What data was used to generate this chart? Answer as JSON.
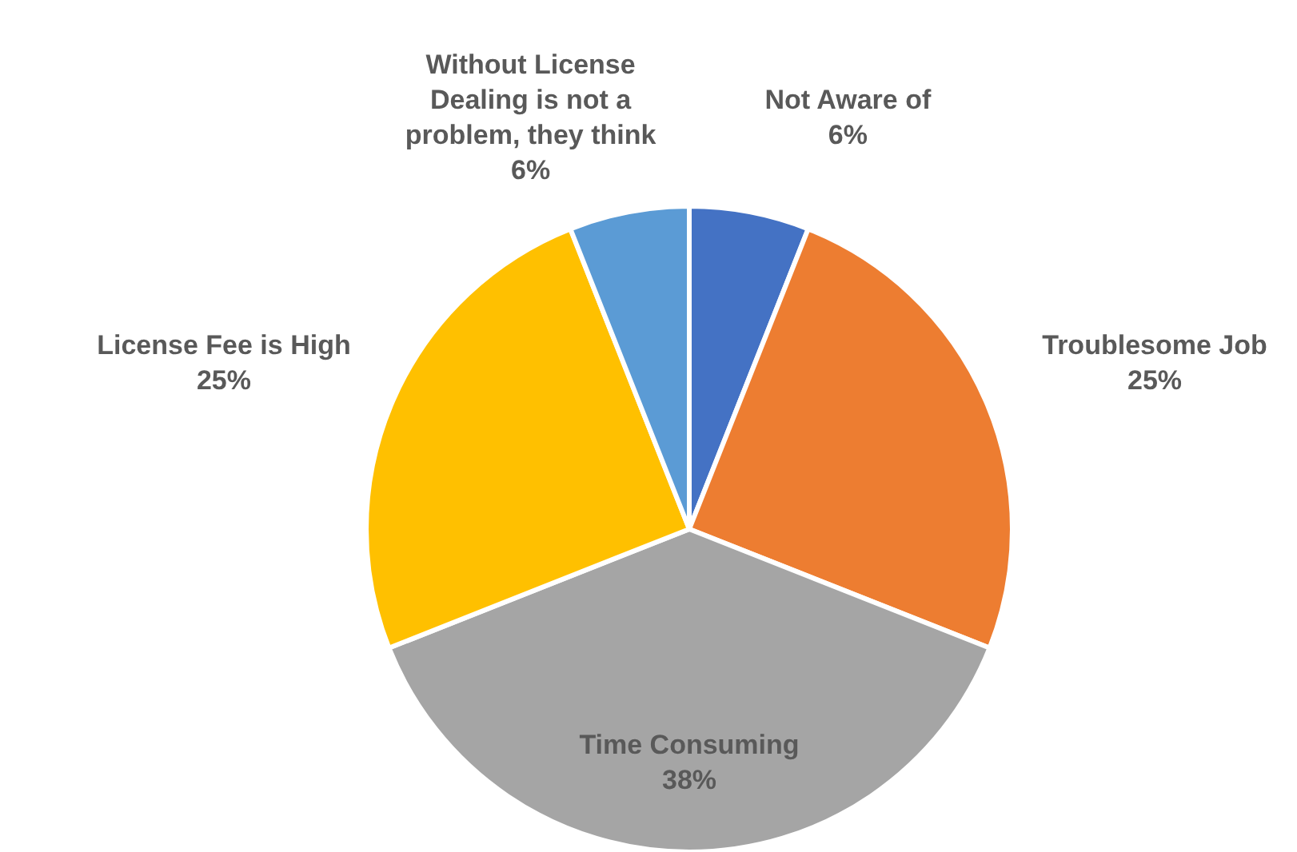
{
  "chart_data": {
    "type": "pie",
    "categories": [
      "Not Aware of",
      "Troublesome Job",
      "Time Consuming",
      "License Fee is High",
      "Without License Dealing is not a problem, they think"
    ],
    "values": [
      6,
      25,
      38,
      25,
      6
    ],
    "colors": [
      "#4472c4",
      "#ed7d31",
      "#a5a5a5",
      "#ffc000",
      "#5b9bd5"
    ],
    "value_labels": [
      "6%",
      "25%",
      "38%",
      "25%",
      "6%"
    ],
    "legend": false
  }
}
